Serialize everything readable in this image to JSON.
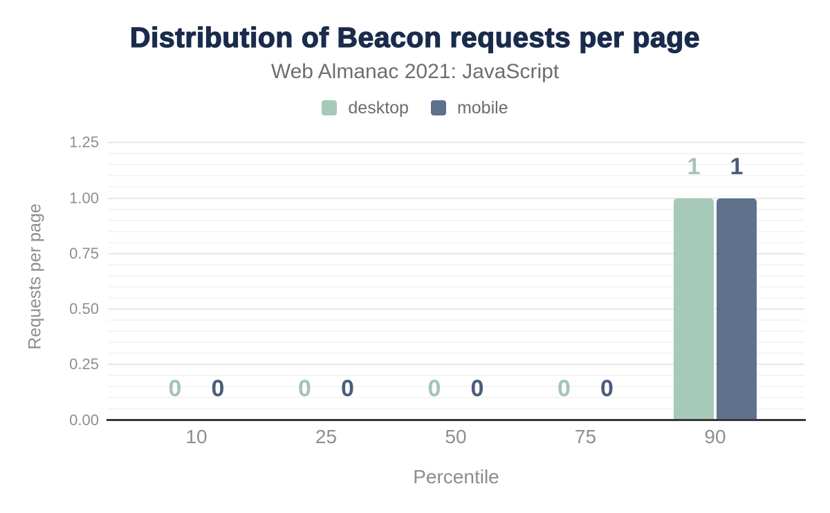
{
  "header": {
    "title": "Distribution of Beacon requests per page",
    "subtitle": "Web Almanac 2021: JavaScript"
  },
  "legend": {
    "items": [
      {
        "label": "desktop",
        "color": "#a7c9b9"
      },
      {
        "label": "mobile",
        "color": "#5f718b"
      }
    ]
  },
  "axes": {
    "x_title": "Percentile",
    "y_title": "Requests per page",
    "x_ticks": [
      "10",
      "25",
      "50",
      "75",
      "90"
    ],
    "y_ticks": [
      "0.00",
      "0.25",
      "0.50",
      "0.75",
      "1.00",
      "1.25"
    ]
  },
  "chart_data": {
    "type": "bar",
    "title": "Distribution of Beacon requests per page",
    "subtitle": "Web Almanac 2021: JavaScript",
    "categories": [
      "10",
      "25",
      "50",
      "75",
      "90"
    ],
    "series": [
      {
        "name": "desktop",
        "color": "#a7c9b9",
        "label_color": "#a2c5b4",
        "values": [
          0,
          0,
          0,
          0,
          1
        ]
      },
      {
        "name": "mobile",
        "color": "#5f718b",
        "label_color": "#4a5d7d",
        "values": [
          0,
          0,
          0,
          0,
          1
        ]
      }
    ],
    "xlabel": "Percentile",
    "ylabel": "Requests per page",
    "ylim": [
      0,
      1.25
    ],
    "y_major_step": 0.25,
    "y_minor_step": 0.05,
    "grid": "horizontal",
    "legend_position": "top",
    "data_labels": true
  },
  "colors": {
    "title": "#1a2b4c",
    "subtitle": "#6e6e70",
    "tick": "#8c8e94",
    "axis_title": "#8a8d92",
    "axis_line": "#35363a",
    "grid_major": "#e8e8e8",
    "grid_minor": "#f5f5f5"
  }
}
